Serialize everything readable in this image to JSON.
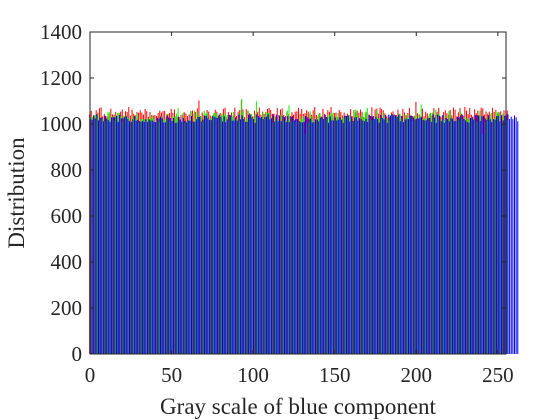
{
  "chart_data": {
    "type": "bar",
    "title": "",
    "xlabel": "Gray scale of blue component",
    "ylabel": "Distribution",
    "xlim": [
      0,
      255
    ],
    "ylim": [
      0,
      1400
    ],
    "xticks": [
      0,
      50,
      100,
      150,
      200,
      250
    ],
    "yticks": [
      0,
      200,
      400,
      600,
      800,
      1000,
      1200,
      1400
    ],
    "grid": false,
    "legend": "none",
    "series": [
      {
        "color": "#ff0000",
        "values": [
          1043,
          1057,
          1031,
          1034,
          1060,
          1049,
          1068,
          1073,
          1033,
          1043,
          1034,
          1032,
          1045,
          1067,
          1042,
          1041,
          1053,
          1035,
          1047,
          1054,
          1063,
          1036,
          1056,
          1052,
          1074,
          1037,
          1062,
          1044,
          1038,
          1052,
          1049,
          1060,
          1050,
          1041,
          1066,
          1056,
          1032,
          1052,
          1039,
          1037,
          1039,
          1035,
          1048,
          1058,
          1050,
          1056,
          1057,
          1030,
          1043,
          1048,
          1066,
          1049,
          1063,
          1035,
          1031,
          1030,
          1040,
          1040,
          1051,
          1046,
          1034,
          1042,
          1056,
          1059,
          1045,
          1052,
          1068,
          1102,
          1034,
          1050,
          1040,
          1035,
          1061,
          1054,
          1037,
          1031,
          1042,
          1062,
          1054,
          1036,
          1048,
          1042,
          1066,
          1071,
          1030,
          1052,
          1039,
          1050,
          1037,
          1071,
          1035,
          1053,
          1061,
          1104,
          1063,
          1030,
          1065,
          1058,
          1047,
          1044,
          1034,
          1058,
          1045,
          1053,
          1072,
          1041,
          1054,
          1044,
          1052,
          1066,
          1070,
          1061,
          1044,
          1045,
          1031,
          1069,
          1039,
          1063,
          1068,
          1039,
          1035,
          1053,
          1043,
          1035,
          1051,
          1040,
          1054,
          1055,
          1070,
          1045,
          1066,
          1044,
          1047,
          1060,
          1054,
          1044,
          1040,
          1059,
          1074,
          1039,
          1033,
          1048,
          1033,
          1066,
          1044,
          1030,
          1060,
          1053,
          1074,
          1042,
          1048,
          1050,
          1030,
          1061,
          1052,
          1037,
          1050,
          1036,
          1045,
          1035,
          1065,
          1033,
          1061,
          1050,
          1058,
          1049,
          1063,
          1052,
          1031,
          1044,
          1054,
          1041,
          1035,
          1073,
          1035,
          1063,
          1067,
          1045,
          1071,
          1066,
          1059,
          1046,
          1032,
          1038,
          1030,
          1050,
          1055,
          1042,
          1039,
          1063,
          1043,
          1036,
          1066,
          1050,
          1039,
          1048,
          1070,
          1037,
          1034,
          1036,
          1096,
          1047,
          1042,
          1034,
          1067,
          1033,
          1054,
          1046,
          1034,
          1049,
          1035,
          1069,
          1039,
          1053,
          1070,
          1032,
          1032,
          1052,
          1060,
          1047,
          1040,
          1061,
          1038,
          1072,
          1062,
          1033,
          1051,
          1069,
          1045,
          1036,
          1074,
          1058,
          1043,
          1070,
          1041,
          1033,
          1064,
          1047,
          1058,
          1038,
          1071,
          1068,
          1041,
          1055,
          1045,
          1054,
          1042,
          1070,
          1052,
          1062,
          1045,
          1051,
          1055,
          1037,
          1060,
          1038,
          1058
        ]
      },
      {
        "color": "#00ff00",
        "values": [
          1021,
          1030,
          1032,
          1039,
          1036,
          1045,
          1011,
          1024,
          1023,
          1010,
          1016,
          1054,
          1051,
          1024,
          1034,
          1014,
          1037,
          1048,
          1049,
          1035,
          1013,
          1036,
          1037,
          1029,
          1025,
          1010,
          1037,
          1025,
          1021,
          1045,
          1005,
          1023,
          1019,
          1022,
          1016,
          1024,
          1022,
          1026,
          1038,
          1025,
          1007,
          1017,
          1022,
          1009,
          1031,
          1018,
          1023,
          1044,
          1024,
          1011,
          1015,
          1033,
          1032,
          1045,
          1069,
          1025,
          1009,
          1049,
          1005,
          1009,
          1012,
          1019,
          1054,
          1007,
          1058,
          1023,
          1052,
          1037,
          1033,
          1010,
          1058,
          1045,
          1050,
          1021,
          1025,
          1038,
          1049,
          1048,
          1043,
          1022,
          1036,
          1047,
          1037,
          1042,
          1039,
          1016,
          1035,
          1032,
          1052,
          1018,
          1022,
          1047,
          1012,
          1108,
          1055,
          1015,
          1027,
          1058,
          1021,
          1043,
          1025,
          1041,
          1099,
          1031,
          1023,
          1029,
          1051,
          1028,
          1052,
          1049,
          1048,
          1022,
          1005,
          1029,
          1035,
          1014,
          1014,
          1039,
          1035,
          1012,
          1014,
          1058,
          1081,
          1013,
          1028,
          1010,
          1009,
          1016,
          1008,
          1027,
          1021,
          1034,
          960,
          1005,
          1010,
          1055,
          1034,
          1014,
          1013,
          1023,
          1042,
          1046,
          1021,
          1029,
          1015,
          1024,
          1036,
          1040,
          1044,
          1050,
          1018,
          1031,
          1048,
          1027,
          1019,
          1032,
          1032,
          1027,
          1030,
          1038,
          1028,
          1010,
          1058,
          1063,
          1039,
          1012,
          1036,
          1050,
          1026,
          1054,
          1070,
          1039,
          1022,
          1018,
          1018,
          1033,
          1060,
          1024,
          1029,
          1020,
          1051,
          1025,
          1026,
          1039,
          1014,
          1034,
          1042,
          1034,
          1032,
          1039,
          1047,
          1026,
          1014,
          1041,
          1025,
          1043,
          1029,
          1028,
          1013,
          1035,
          1048,
          1016,
          1033,
          1085,
          1023,
          1023,
          1027,
          1012,
          1044,
          1048,
          1050,
          1020,
          1062,
          1026,
          1045,
          1014,
          1034,
          1017,
          1039,
          1020,
          1057,
          1040,
          1013,
          1025,
          1011,
          1021,
          1016,
          1054,
          1024,
          1014,
          1030,
          1025,
          1017,
          1025,
          1030,
          1023,
          1018,
          1011,
          1009,
          1058,
          1033,
          955,
          1009,
          1032,
          1013,
          1022,
          1049,
          1022,
          1024,
          1051,
          1052,
          1046,
          1007,
          1045,
          1031,
          1049,
          1016
        ]
      },
      {
        "color": "#0000ff",
        "values": [
          1023,
          1019,
          1038,
          1024,
          1042,
          1016,
          1027,
          1028,
          1012,
          1036,
          1024,
          1017,
          1009,
          1029,
          1030,
          1029,
          1036,
          1009,
          1039,
          1024,
          1025,
          1030,
          1034,
          1021,
          1012,
          1009,
          1020,
          1034,
          1014,
          1018,
          1013,
          1010,
          1014,
          1009,
          1020,
          1009,
          1020,
          1015,
          1015,
          1009,
          1008,
          1027,
          1024,
          1032,
          1025,
          1007,
          1007,
          1037,
          1028,
          1026,
          1013,
          1026,
          1005,
          1006,
          1032,
          1019,
          1010,
          1027,
          1014,
          1007,
          1015,
          1014,
          1035,
          1011,
          1009,
          1021,
          1031,
          1031,
          1011,
          1019,
          1037,
          1036,
          1025,
          1018,
          1017,
          1035,
          1031,
          1028,
          1026,
          1041,
          1031,
          1011,
          1033,
          1008,
          1020,
          1040,
          1037,
          1014,
          1015,
          1028,
          1014,
          1040,
          1020,
          1037,
          1021,
          1009,
          1009,
          1040,
          1040,
          1029,
          1021,
          1005,
          1042,
          1035,
          1027,
          1031,
          1021,
          1030,
          1032,
          1042,
          1020,
          1025,
          1042,
          1011,
          1041,
          1012,
          1036,
          1012,
          1034,
          1030,
          1008,
          1034,
          1008,
          1031,
          1034,
          1016,
          1021,
          1021,
          1012,
          1009,
          1007,
          1009,
          1035,
          1029,
          1023,
          1024,
          1007,
          1008,
          1020,
          1019,
          1012,
          1028,
          1030,
          1022,
          1040,
          1030,
          1005,
          1032,
          1016,
          1015,
          1029,
          1015,
          1019,
          1029,
          1018,
          1005,
          1036,
          1035,
          1038,
          1011,
          1033,
          1013,
          1029,
          1030,
          1014,
          1025,
          1021,
          1015,
          1012,
          1023,
          1009,
          1040,
          1034,
          1032,
          1022,
          1032,
          1021,
          1006,
          1039,
          1026,
          1020,
          1039,
          1005,
          1041,
          1037,
          1042,
          1038,
          1038,
          1031,
          1040,
          1012,
          1035,
          1008,
          1020,
          1023,
          1021,
          1037,
          1036,
          1029,
          1020,
          1023,
          1024,
          1027,
          1031,
          1018,
          1016,
          1016,
          1025,
          1026,
          1009,
          1042,
          1028,
          1005,
          1040,
          1036,
          1012,
          1039,
          1005,
          1026,
          1021,
          1012,
          1025,
          1023,
          1012,
          1013,
          1031,
          1029,
          1038,
          1040,
          1021,
          1016,
          1009,
          1006,
          1026,
          1029,
          1019,
          1039,
          1038,
          1037,
          1013,
          1033,
          1036,
          1024,
          1018,
          1038,
          1020,
          1008,
          1021,
          1019,
          1034,
          1036,
          1011,
          1038,
          1015,
          1035,
          1042,
          1042,
          1022,
          1032,
          1021,
          1037,
          1029,
          1012
        ]
      }
    ]
  }
}
